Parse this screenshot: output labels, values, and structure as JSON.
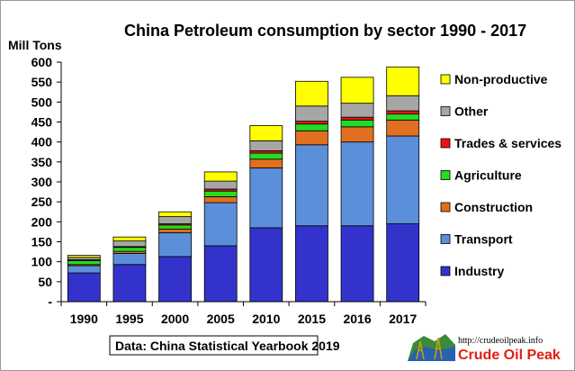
{
  "chart_data": {
    "type": "bar",
    "stacked": true,
    "title": "China  Petroleum consumption  by sector 1990 - 2017",
    "ylabel": "Mill Tons",
    "ylim": [
      0,
      600
    ],
    "ytick_values": [
      0,
      50,
      100,
      150,
      200,
      250,
      300,
      350,
      400,
      450,
      500,
      550,
      600
    ],
    "ytick_labels": [
      "-",
      "50",
      "100",
      "150",
      "200",
      "250",
      "300",
      "350",
      "400",
      "450",
      "500",
      "550",
      "600"
    ],
    "categories": [
      "1990",
      "1995",
      "2000",
      "2005",
      "2010",
      "2015",
      "2016",
      "2017"
    ],
    "series": [
      {
        "name": "Industry",
        "color": "#3333cc",
        "values": [
          72,
          93,
          113,
          140,
          185,
          190,
          190,
          195
        ]
      },
      {
        "name": "Transport",
        "color": "#5b8fd9",
        "values": [
          18,
          28,
          60,
          108,
          150,
          203,
          210,
          220
        ]
      },
      {
        "name": "Construction",
        "color": "#e07020",
        "values": [
          3,
          5,
          9,
          15,
          22,
          35,
          38,
          40
        ]
      },
      {
        "name": "Agriculture",
        "color": "#22dd22",
        "values": [
          10,
          10,
          10,
          14,
          15,
          17,
          17,
          15
        ]
      },
      {
        "name": "Trades & services",
        "color": "#ee1111",
        "values": [
          2,
          2,
          3,
          5,
          6,
          7,
          7,
          8
        ]
      },
      {
        "name": "Other",
        "color": "#a6a6a6",
        "values": [
          6,
          14,
          18,
          20,
          25,
          38,
          35,
          38
        ]
      },
      {
        "name": "Non-productive",
        "color": "#ffff00",
        "values": [
          5,
          10,
          12,
          23,
          38,
          62,
          65,
          72
        ]
      }
    ],
    "legend_order": [
      "Non-productive",
      "Other",
      "Trades & services",
      "Agriculture",
      "Construction",
      "Transport",
      "Industry"
    ],
    "legend_position": "right",
    "grid": false
  },
  "source_note": "Data: China Statistical Yearbook 2019",
  "logo": {
    "url_text": "http://crudeoilpeak.info",
    "brand_text": "Crude Oil Peak"
  }
}
